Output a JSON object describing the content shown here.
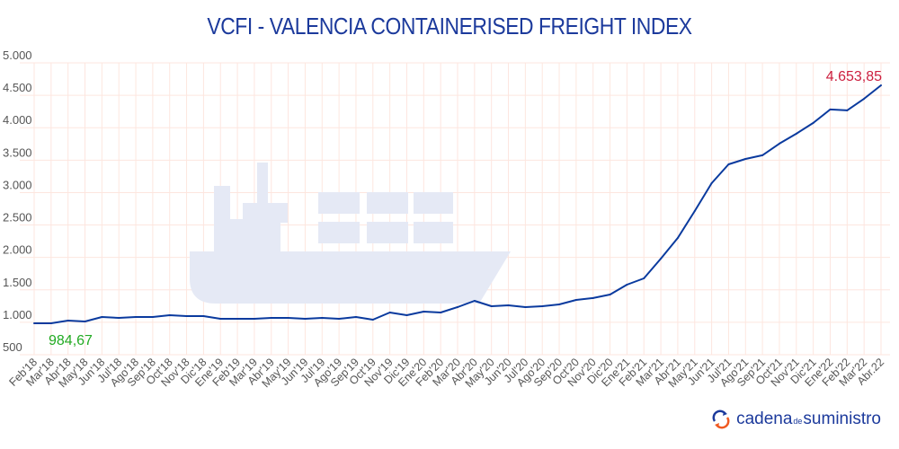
{
  "chart_data": {
    "type": "line",
    "title": "VCFI - VALENCIA CONTAINERISED FREIGHT INDEX",
    "xlabel": "",
    "ylabel": "",
    "ylim": [
      500,
      5000
    ],
    "yticks": [
      "5.000",
      "4.500",
      "4.000",
      "3.500",
      "3.000",
      "2.500",
      "2.000",
      "1.500",
      "1.000",
      "500"
    ],
    "ytick_values": [
      5000,
      4500,
      4000,
      3500,
      3000,
      2500,
      2000,
      1500,
      1000,
      500
    ],
    "grid": true,
    "categories": [
      "Feb'18",
      "Mar'18",
      "Abr'18",
      "May'18",
      "Jun'18",
      "Jul'18",
      "Ago'18",
      "Sep'18",
      "Oct'18",
      "Nov'18",
      "Dic'18",
      "Ene'19",
      "Feb'19",
      "Mar'19",
      "Abr'19",
      "May'19",
      "Jun'19",
      "Jul'19",
      "Ago'19",
      "Sep'19",
      "Oct'19",
      "Nov'19",
      "Dic'19",
      "Ene'20",
      "Feb'20",
      "Mar'20",
      "Abr'20",
      "May'20",
      "Jun'20",
      "Jul'20",
      "Ago'20",
      "Sep'20",
      "Oct'20",
      "Nov'20",
      "Dic'20",
      "Ene'21",
      "Feb'21",
      "Mar'21",
      "Abr'21",
      "May'21",
      "Jun'21",
      "Jul'21",
      "Ago'21",
      "Sep'21",
      "Oct'21",
      "Nov'21",
      "Dic'21",
      "Ene'22",
      "Feb'22",
      "Mar'22",
      "Abr.22"
    ],
    "series": [
      {
        "name": "VCFI",
        "color": "#0a3a9e",
        "values": [
          984.67,
          985,
          1026,
          1012,
          1082,
          1068,
          1082,
          1082,
          1109,
          1096,
          1096,
          1054,
          1054,
          1054,
          1068,
          1068,
          1054,
          1068,
          1054,
          1082,
          1040,
          1151,
          1109,
          1165,
          1151,
          1234,
          1331,
          1248,
          1262,
          1234,
          1248,
          1276,
          1345,
          1373,
          1428,
          1580,
          1677,
          1982,
          2300,
          2716,
          3145,
          3436,
          3519,
          3575,
          3755,
          3907,
          4073,
          4281,
          4267,
          4447,
          4653.85
        ]
      }
    ],
    "annotations": [
      {
        "text": "984,67",
        "color": "#22aa22",
        "point": "first"
      },
      {
        "text": "4.653,85",
        "color": "#cc1f3f",
        "point": "last"
      }
    ]
  },
  "branding": {
    "logo_main": "cadena",
    "logo_de": "de",
    "logo_tail": "suministro",
    "logo_colors": [
      "#1c3a9c",
      "#f05a22"
    ]
  }
}
